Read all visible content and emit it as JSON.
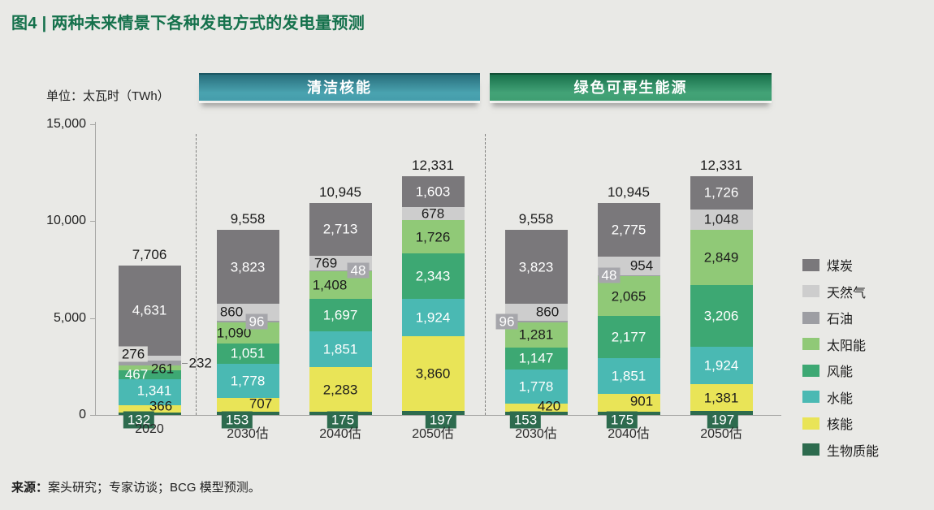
{
  "title": "图4 | 两种未来情景下各种发电方式的发电量预测",
  "unit_label": "单位：太瓦时（TWh）",
  "scenario_headers": [
    {
      "label": "清洁核能",
      "color": "#3b93a1"
    },
    {
      "label": "绿色可再生能源",
      "color": "#2f8e63"
    }
  ],
  "source": {
    "prefix": "来源：",
    "text": "案头研究；专家访谈；BCG 模型预测。"
  },
  "accent_color": "#15714c",
  "chart_data": {
    "type": "bar",
    "stacked": true,
    "title": "两种未来情景下各种发电方式的发电量预测",
    "unit": "TWh",
    "ylabel": "太瓦时（TWh）",
    "ylim": [
      0,
      15000
    ],
    "grid": false,
    "legend_position": "right",
    "yticks": [
      {
        "value": 0,
        "label": "0"
      },
      {
        "value": 5000,
        "label": "5,000"
      },
      {
        "value": 10000,
        "label": "10,000"
      },
      {
        "value": 15000,
        "label": "15,000"
      }
    ],
    "series": [
      {
        "key": "biomass",
        "label": "生物质能",
        "color": "#2d6b4e"
      },
      {
        "key": "nuclear",
        "label": "核能",
        "color": "#e9e457"
      },
      {
        "key": "hydro",
        "label": "水能",
        "color": "#4ab9b3"
      },
      {
        "key": "wind",
        "label": "风能",
        "color": "#3da873"
      },
      {
        "key": "solar",
        "label": "太阳能",
        "color": "#90c977"
      },
      {
        "key": "oil",
        "label": "石油",
        "color": "#9d9ea3"
      },
      {
        "key": "gas",
        "label": "天然气",
        "color": "#cdcdcd"
      },
      {
        "key": "coal",
        "label": "煤炭",
        "color": "#7a787b"
      }
    ],
    "groups": [
      {
        "id": "2020",
        "scenario": "",
        "category": "2020",
        "total": 7706,
        "total_label": "7,706",
        "segments": [
          {
            "key": "biomass",
            "value": 132,
            "label": "132",
            "style": "badge-green",
            "dx": -13,
            "dy": 8
          },
          {
            "key": "nuclear",
            "value": 366,
            "label": "366",
            "style": "dark",
            "dx": 14,
            "dy": -3
          },
          {
            "key": "hydro",
            "value": 1341,
            "label": "1,341",
            "style": "light",
            "dx": 6,
            "dy": -2
          },
          {
            "key": "wind",
            "value": 467,
            "label": "467",
            "style": "light",
            "dx": -16,
            "dy": -1
          },
          {
            "key": "solar",
            "value": 261,
            "label": "261",
            "style": "dark",
            "dx": 16,
            "dy": 1
          },
          {
            "key": "oil",
            "value": 232,
            "label": "232",
            "style": "outside",
            "dx": 0,
            "dy": 0
          },
          {
            "key": "gas",
            "value": 276,
            "label": "276",
            "style": "badge-light",
            "dx": -20,
            "dy": -5
          },
          {
            "key": "coal",
            "value": 4631,
            "label": "4,631",
            "style": "light",
            "dx": 0,
            "dy": 0
          }
        ]
      },
      {
        "id": "nuclear-2030",
        "scenario": "清洁核能",
        "category": "2030估",
        "total": 9558,
        "total_label": "9,558",
        "segments": [
          {
            "key": "biomass",
            "value": 153,
            "label": "153",
            "style": "badge-green",
            "dx": -13,
            "dy": 8
          },
          {
            "key": "nuclear",
            "value": 707,
            "label": "707",
            "style": "dark",
            "dx": 16,
            "dy": -2
          },
          {
            "key": "hydro",
            "value": 1778,
            "label": "1,778",
            "style": "light",
            "dx": 0,
            "dy": 0
          },
          {
            "key": "wind",
            "value": 1051,
            "label": "1,051",
            "style": "light",
            "dx": 0,
            "dy": 0
          },
          {
            "key": "solar",
            "value": 1090,
            "label": "1,090",
            "style": "dark",
            "dx": -17,
            "dy": 0
          },
          {
            "key": "oil",
            "value": 96,
            "label": "96",
            "style": "badge-gray",
            "dx": 11,
            "dy": 0
          },
          {
            "key": "gas",
            "value": 860,
            "label": "860",
            "style": "dark",
            "dx": -20,
            "dy": 0
          },
          {
            "key": "coal",
            "value": 3823,
            "label": "3,823",
            "style": "light",
            "dx": 0,
            "dy": 0
          }
        ]
      },
      {
        "id": "nuclear-2040",
        "scenario": "清洁核能",
        "category": "2040估",
        "total": 10945,
        "total_label": "10,945",
        "segments": [
          {
            "key": "biomass",
            "value": 175,
            "label": "175",
            "style": "badge-green",
            "dx": 3,
            "dy": 8
          },
          {
            "key": "nuclear",
            "value": 2283,
            "label": "2,283",
            "style": "dark",
            "dx": 0,
            "dy": 0
          },
          {
            "key": "hydro",
            "value": 1851,
            "label": "1,851",
            "style": "light",
            "dx": 0,
            "dy": 0
          },
          {
            "key": "wind",
            "value": 1697,
            "label": "1,697",
            "style": "light",
            "dx": 0,
            "dy": 0
          },
          {
            "key": "solar",
            "value": 1408,
            "label": "1,408",
            "style": "dark",
            "dx": -13,
            "dy": 0
          },
          {
            "key": "oil",
            "value": 48,
            "label": "48",
            "style": "badge-gray",
            "dx": 22,
            "dy": 0
          },
          {
            "key": "gas",
            "value": 769,
            "label": "769",
            "style": "dark",
            "dx": -18,
            "dy": 0
          },
          {
            "key": "coal",
            "value": 2713,
            "label": "2,713",
            "style": "light",
            "dx": 0,
            "dy": 0
          }
        ]
      },
      {
        "id": "nuclear-2050",
        "scenario": "清洁核能",
        "category": "2050估",
        "total": 12331,
        "total_label": "12,331",
        "segments": [
          {
            "key": "biomass",
            "value": 197,
            "label": "197",
            "style": "badge-green",
            "dx": 10,
            "dy": 8
          },
          {
            "key": "nuclear",
            "value": 3860,
            "label": "3,860",
            "style": "dark",
            "dx": 0,
            "dy": 0
          },
          {
            "key": "hydro",
            "value": 1924,
            "label": "1,924",
            "style": "light",
            "dx": 0,
            "dy": 0
          },
          {
            "key": "wind",
            "value": 2343,
            "label": "2,343",
            "style": "light",
            "dx": 0,
            "dy": 0
          },
          {
            "key": "solar",
            "value": 1726,
            "label": "1,726",
            "style": "dark",
            "dx": 0,
            "dy": 0
          },
          {
            "key": "gas",
            "value": 678,
            "label": "678",
            "style": "dark",
            "dx": 0,
            "dy": 0
          },
          {
            "key": "coal",
            "value": 1603,
            "label": "1,603",
            "style": "light",
            "dx": 0,
            "dy": 0
          }
        ]
      },
      {
        "id": "renewable-2030",
        "scenario": "绿色可再生能源",
        "category": "2030估",
        "total": 9558,
        "total_label": "9,558",
        "segments": [
          {
            "key": "biomass",
            "value": 153,
            "label": "153",
            "style": "badge-green",
            "dx": -13,
            "dy": 8
          },
          {
            "key": "nuclear",
            "value": 420,
            "label": "420",
            "style": "dark",
            "dx": 16,
            "dy": -2
          },
          {
            "key": "hydro",
            "value": 1778,
            "label": "1,778",
            "style": "light",
            "dx": 0,
            "dy": 0
          },
          {
            "key": "wind",
            "value": 1147,
            "label": "1,147",
            "style": "light",
            "dx": 0,
            "dy": 0
          },
          {
            "key": "solar",
            "value": 1281,
            "label": "1,281",
            "style": "dark",
            "dx": 0,
            "dy": 0
          },
          {
            "key": "oil",
            "value": 96,
            "label": "96",
            "style": "badge-gray",
            "dx": -36,
            "dy": 0
          },
          {
            "key": "gas",
            "value": 860,
            "label": "860",
            "style": "dark",
            "dx": 14,
            "dy": 0
          },
          {
            "key": "coal",
            "value": 3823,
            "label": "3,823",
            "style": "light",
            "dx": 0,
            "dy": 0
          }
        ]
      },
      {
        "id": "renewable-2040",
        "scenario": "绿色可再生能源",
        "category": "2040估",
        "total": 10945,
        "total_label": "10,945",
        "segments": [
          {
            "key": "biomass",
            "value": 175,
            "label": "175",
            "style": "badge-green",
            "dx": -8,
            "dy": 8
          },
          {
            "key": "nuclear",
            "value": 901,
            "label": "901",
            "style": "dark",
            "dx": 16,
            "dy": -2
          },
          {
            "key": "hydro",
            "value": 1851,
            "label": "1,851",
            "style": "light",
            "dx": 0,
            "dy": 0
          },
          {
            "key": "wind",
            "value": 2177,
            "label": "2,177",
            "style": "light",
            "dx": 0,
            "dy": 0
          },
          {
            "key": "solar",
            "value": 2065,
            "label": "2,065",
            "style": "dark",
            "dx": 0,
            "dy": 0
          },
          {
            "key": "oil",
            "value": 48,
            "label": "48",
            "style": "badge-gray",
            "dx": -24,
            "dy": 0
          },
          {
            "key": "gas",
            "value": 954,
            "label": "954",
            "style": "dark",
            "dx": 16,
            "dy": 0
          },
          {
            "key": "coal",
            "value": 2775,
            "label": "2,775",
            "style": "light",
            "dx": 0,
            "dy": 0
          }
        ]
      },
      {
        "id": "renewable-2050",
        "scenario": "绿色可再生能源",
        "category": "2050估",
        "total": 12331,
        "total_label": "12,331",
        "segments": [
          {
            "key": "biomass",
            "value": 197,
            "label": "197",
            "style": "badge-green",
            "dx": 2,
            "dy": 8
          },
          {
            "key": "nuclear",
            "value": 1381,
            "label": "1,381",
            "style": "dark",
            "dx": 0,
            "dy": 0
          },
          {
            "key": "hydro",
            "value": 1924,
            "label": "1,924",
            "style": "light",
            "dx": 0,
            "dy": 0
          },
          {
            "key": "wind",
            "value": 3206,
            "label": "3,206",
            "style": "light",
            "dx": 0,
            "dy": 0
          },
          {
            "key": "solar",
            "value": 2849,
            "label": "2,849",
            "style": "dark",
            "dx": 0,
            "dy": 0
          },
          {
            "key": "gas",
            "value": 1048,
            "label": "1,048",
            "style": "dark",
            "dx": 0,
            "dy": 0
          },
          {
            "key": "coal",
            "value": 1726,
            "label": "1,726",
            "style": "light",
            "dx": 0,
            "dy": 0
          }
        ]
      }
    ]
  }
}
